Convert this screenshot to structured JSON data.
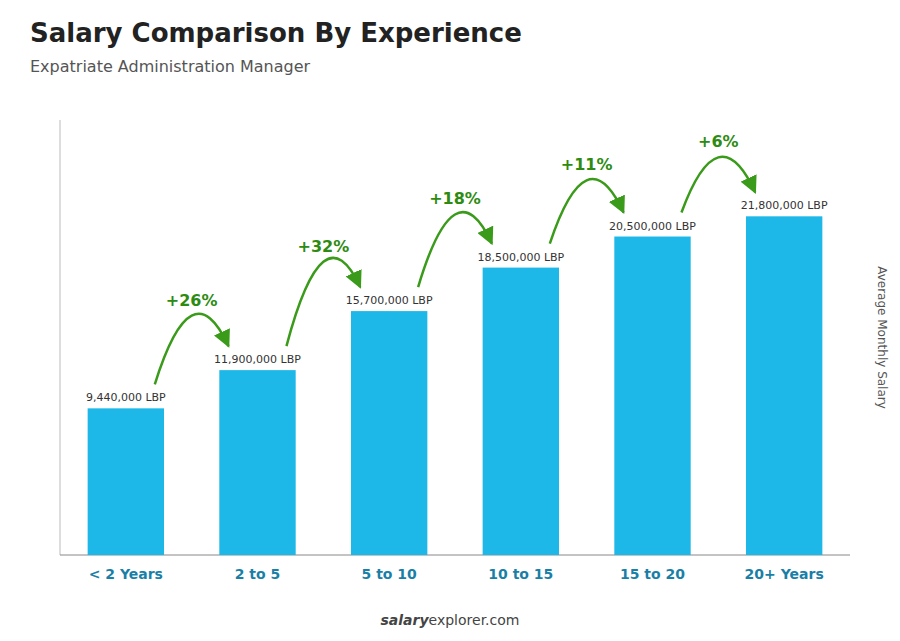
{
  "chart_data": {
    "type": "bar",
    "title": "Salary Comparison By Experience",
    "subtitle": "Expatriate Administration Manager",
    "y_label": "Average Monthly Salary",
    "categories": [
      "< 2 Years",
      "2 to 5",
      "5 to 10",
      "10 to 15",
      "15 to 20",
      "20+ Years"
    ],
    "values": [
      9440000,
      11900000,
      15700000,
      18500000,
      20500000,
      21800000
    ],
    "value_labels": [
      "9,440,000 LBP",
      "11,900,000 LBP",
      "15,700,000 LBP",
      "18,500,000 LBP",
      "20,500,000 LBP",
      "21,800,000 LBP"
    ],
    "data_labels": true,
    "annotations": [
      "+26%",
      "+32%",
      "+18%",
      "+11%",
      "+6%"
    ],
    "footer": [
      "salary",
      "explorer.com"
    ],
    "color": "#1EB8E8",
    "ylim": [
      0,
      28000000
    ],
    "tick_labels": "x",
    "grid": false
  }
}
